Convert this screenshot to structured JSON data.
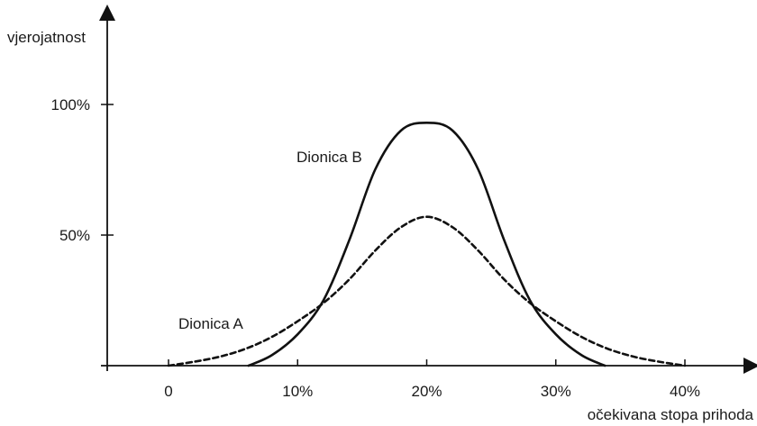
{
  "chart_data": {
    "type": "line",
    "ylabel": "vjerojatnost",
    "xlabel": "očekivana stopa prihoda",
    "x_ticks": [
      {
        "value": 0,
        "label": "0"
      },
      {
        "value": 10,
        "label": "10%"
      },
      {
        "value": 20,
        "label": "20%"
      },
      {
        "value": 30,
        "label": "30%"
      },
      {
        "value": 40,
        "label": "40%"
      }
    ],
    "y_ticks": [
      {
        "value": 50,
        "label": "50%"
      },
      {
        "value": 100,
        "label": "100%"
      }
    ],
    "xlim": [
      -5,
      45
    ],
    "ylim": [
      0,
      135
    ],
    "grid": false,
    "series": [
      {
        "name": "Dionica A",
        "line_style": "dashed",
        "color": "#111111",
        "x": [
          0,
          2,
          4,
          6,
          8,
          10,
          12,
          14,
          16,
          18,
          20,
          22,
          24,
          26,
          28,
          30,
          32,
          34,
          36,
          38,
          40
        ],
        "y": [
          0,
          1.5,
          3.5,
          6.5,
          11,
          17,
          24,
          33,
          44,
          53,
          57,
          53,
          44,
          33,
          24,
          17,
          11,
          6.5,
          3.5,
          1.5,
          0
        ]
      },
      {
        "name": "Dionica B",
        "line_style": "solid",
        "color": "#111111",
        "x": [
          6.2,
          8,
          10,
          12,
          14,
          16,
          18,
          20,
          22,
          24,
          26,
          28,
          30,
          32,
          33.8
        ],
        "y": [
          0,
          4,
          12,
          25,
          48,
          75,
          90,
          93,
          90,
          75,
          48,
          25,
          12,
          4,
          0
        ]
      }
    ]
  }
}
